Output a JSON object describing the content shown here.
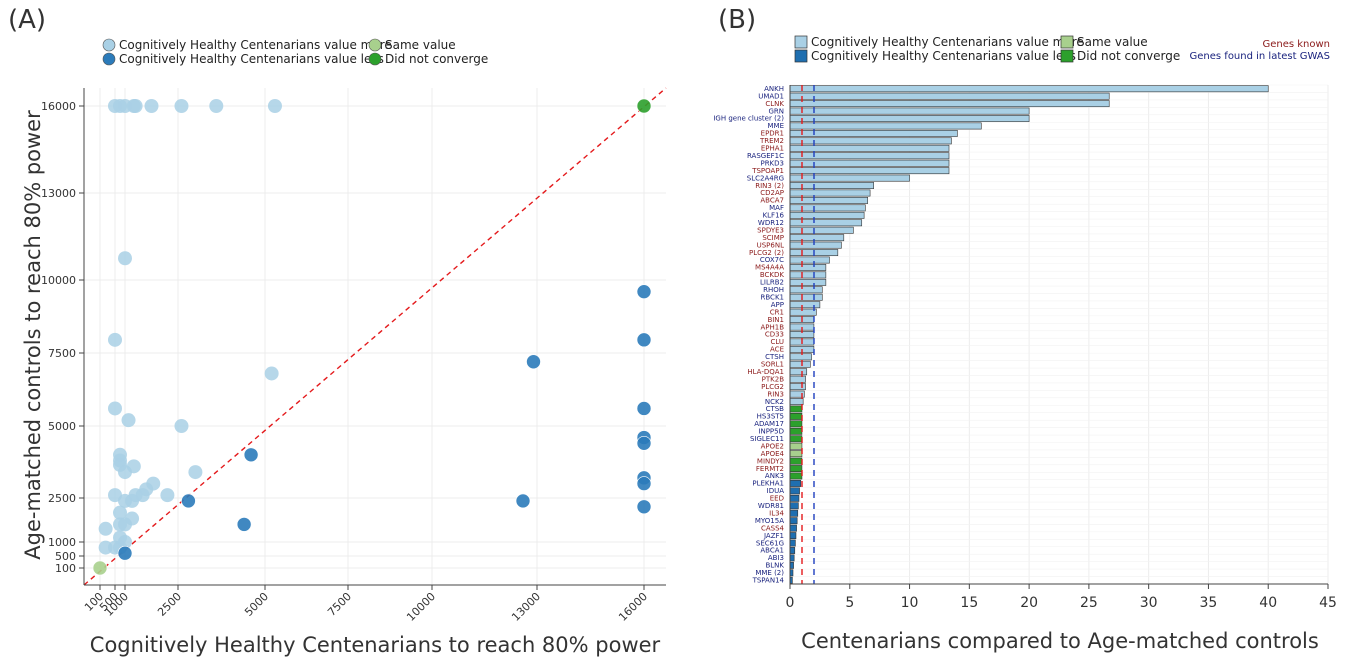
{
  "colors": {
    "more": "#a9d0e5",
    "less": "#2b7bba",
    "same": "#a8d08d",
    "noconv": "#2ca02c",
    "diag": "#e41a1c",
    "known": "#8b1a1a",
    "gwas": "#1a237e",
    "grid": "#ececec",
    "axis": "#444444"
  },
  "panel_a": {
    "label": "(A)",
    "legend": [
      "Cognitively Healthy Centenarians value more",
      "Cognitively Healthy Centenarians value less",
      "Same value",
      "Did not converge"
    ],
    "xlabel": "Cognitively Healthy Centenarians to reach 80% power",
    "ylabel": "Age-matched controls to reach 80% power"
  },
  "panel_b": {
    "label": "(B)",
    "legend": [
      "Cognitively Healthy Centenarians value more",
      "Cognitively Healthy Centenarians value less",
      "Same value",
      "Did not converge"
    ],
    "note_known": "Genes known",
    "note_gwas": "Genes found in latest GWAS",
    "xlabel": "Centenarians compared to Age-matched controls"
  },
  "chart_data": [
    {
      "type": "scatter",
      "x_ticks": [
        100,
        500,
        1000,
        2500,
        5000,
        7500,
        10000,
        13000,
        16000
      ],
      "y_ticks": [
        100,
        500,
        1000,
        2500,
        5000,
        7500,
        10000,
        13000,
        16000
      ],
      "xlim": [
        100,
        16000
      ],
      "ylim": [
        100,
        16000
      ],
      "grid": true,
      "diagonal": true,
      "series": [
        {
          "group": "more",
          "points": [
            [
              500,
              16000
            ],
            [
              750,
              16000
            ],
            [
              1000,
              16000
            ],
            [
              1250,
              16000
            ],
            [
              1300,
              16000
            ],
            [
              1750,
              16000
            ],
            [
              2600,
              16000
            ],
            [
              3600,
              16000
            ],
            [
              5300,
              16000
            ],
            [
              1000,
              10750
            ],
            [
              500,
              7950
            ],
            [
              5200,
              6800
            ],
            [
              500,
              5600
            ],
            [
              1100,
              5200
            ],
            [
              2600,
              5000
            ],
            [
              750,
              4000
            ],
            [
              750,
              3800
            ],
            [
              750,
              3650
            ],
            [
              1000,
              3400
            ],
            [
              1250,
              3600
            ],
            [
              3000,
              3400
            ],
            [
              1800,
              3000
            ],
            [
              1600,
              2800
            ],
            [
              500,
              2600
            ],
            [
              1300,
              2600
            ],
            [
              1500,
              2600
            ],
            [
              2200,
              2600
            ],
            [
              1000,
              2400
            ],
            [
              1200,
              2400
            ],
            [
              750,
              2000
            ],
            [
              1200,
              1800
            ],
            [
              750,
              1600
            ],
            [
              1000,
              1600
            ],
            [
              250,
              1450
            ],
            [
              750,
              1150
            ],
            [
              1000,
              1000
            ],
            [
              250,
              800
            ],
            [
              500,
              800
            ],
            [
              750,
              800
            ]
          ]
        },
        {
          "group": "less",
          "points": [
            [
              1000,
              600
            ],
            [
              2800,
              2400
            ],
            [
              4400,
              1600
            ],
            [
              4600,
              4000
            ],
            [
              12600,
              2400
            ],
            [
              12900,
              7200
            ],
            [
              16000,
              9600
            ],
            [
              16000,
              7950
            ],
            [
              16000,
              5600
            ],
            [
              16000,
              4600
            ],
            [
              16000,
              4400
            ],
            [
              16000,
              3200
            ],
            [
              16000,
              3000
            ],
            [
              16000,
              2200
            ]
          ]
        },
        {
          "group": "same",
          "points": [
            [
              100,
              100
            ]
          ]
        },
        {
          "group": "noconv",
          "points": [
            [
              16000,
              16000
            ]
          ]
        }
      ]
    },
    {
      "type": "bar",
      "orientation": "horizontal",
      "xlim": [
        0,
        45
      ],
      "x_ticks": [
        0,
        5,
        10,
        15,
        20,
        25,
        30,
        35,
        40,
        45
      ],
      "ref_lines": [
        1,
        2
      ],
      "categories": [
        "ANKH",
        "UMAD1",
        "CLNK",
        "GRN",
        "IGH gene cluster (2)",
        "MME",
        "EPDR1",
        "TREM2",
        "EPHA1",
        "RASGEF1C",
        "PRKD3",
        "TSPOAP1",
        "SLC2A4RG",
        "RIN3 (2)",
        "CD2AP",
        "ABCA7",
        "MAF",
        "KLF16",
        "WDR12",
        "SPDYE3",
        "SCIMP",
        "USP6NL",
        "PLCG2 (2)",
        "COX7C",
        "MS4A4A",
        "BCKDK",
        "LILRB2",
        "RHOH",
        "RBCK1",
        "APP",
        "CR1",
        "BIN1",
        "APH1B",
        "CD33",
        "CLU",
        "ACE",
        "CTSH",
        "SORL1",
        "HLA-DQA1",
        "PTK2B",
        "PLCG2",
        "RIN3",
        "NCK2",
        "CTSB",
        "HS3ST5",
        "ADAM17",
        "INPP5D",
        "SIGLEC11",
        "APOE2",
        "APOE4",
        "MINDY2",
        "FERMT2",
        "ANK3",
        "PLEKHA1",
        "IDUA",
        "EED",
        "WDR81",
        "IL34",
        "MYO15A",
        "CASS4",
        "JAZF1",
        "SEC61G",
        "ABCA1",
        "ABI3",
        "BLNK",
        "MME (2)",
        "TSPAN14"
      ],
      "values": [
        40.0,
        26.7,
        26.7,
        20.0,
        20.0,
        16.0,
        14.0,
        13.5,
        13.3,
        13.3,
        13.3,
        13.3,
        10.0,
        7.0,
        6.7,
        6.5,
        6.3,
        6.2,
        6.0,
        5.3,
        4.5,
        4.3,
        4.0,
        3.3,
        3.0,
        3.0,
        3.0,
        2.7,
        2.7,
        2.5,
        2.2,
        2.0,
        2.0,
        2.0,
        2.0,
        2.0,
        1.8,
        1.7,
        1.4,
        1.3,
        1.3,
        1.2,
        1.1,
        1.0,
        1.0,
        1.0,
        1.0,
        1.0,
        1.0,
        1.0,
        1.0,
        1.0,
        1.0,
        0.9,
        0.8,
        0.75,
        0.7,
        0.65,
        0.6,
        0.55,
        0.5,
        0.45,
        0.4,
        0.35,
        0.3,
        0.25,
        0.2
      ],
      "groups": [
        "more",
        "more",
        "more",
        "more",
        "more",
        "more",
        "more",
        "more",
        "more",
        "more",
        "more",
        "more",
        "more",
        "more",
        "more",
        "more",
        "more",
        "more",
        "more",
        "more",
        "more",
        "more",
        "more",
        "more",
        "more",
        "more",
        "more",
        "more",
        "more",
        "more",
        "more",
        "more",
        "more",
        "more",
        "more",
        "more",
        "more",
        "more",
        "more",
        "more",
        "more",
        "more",
        "more",
        "noconv",
        "noconv",
        "noconv",
        "noconv",
        "noconv",
        "same",
        "same",
        "noconv",
        "noconv",
        "noconv",
        "less",
        "less",
        "less",
        "less",
        "less",
        "less",
        "less",
        "less",
        "less",
        "less",
        "less",
        "less",
        "less",
        "less"
      ],
      "label_types": [
        "gwas",
        "gwas",
        "known",
        "gwas",
        "gwas",
        "gwas",
        "known",
        "known",
        "known",
        "gwas",
        "gwas",
        "known",
        "gwas",
        "known",
        "known",
        "known",
        "gwas",
        "gwas",
        "gwas",
        "known",
        "known",
        "known",
        "known",
        "gwas",
        "known",
        "known",
        "gwas",
        "gwas",
        "gwas",
        "gwas",
        "known",
        "known",
        "known",
        "known",
        "known",
        "known",
        "gwas",
        "known",
        "known",
        "known",
        "known",
        "known",
        "gwas",
        "gwas",
        "gwas",
        "gwas",
        "gwas",
        "gwas",
        "known",
        "known",
        "known",
        "known",
        "gwas",
        "gwas",
        "gwas",
        "known",
        "gwas",
        "known",
        "gwas",
        "known",
        "gwas",
        "gwas",
        "gwas",
        "gwas",
        "gwas",
        "gwas",
        "gwas"
      ]
    }
  ]
}
